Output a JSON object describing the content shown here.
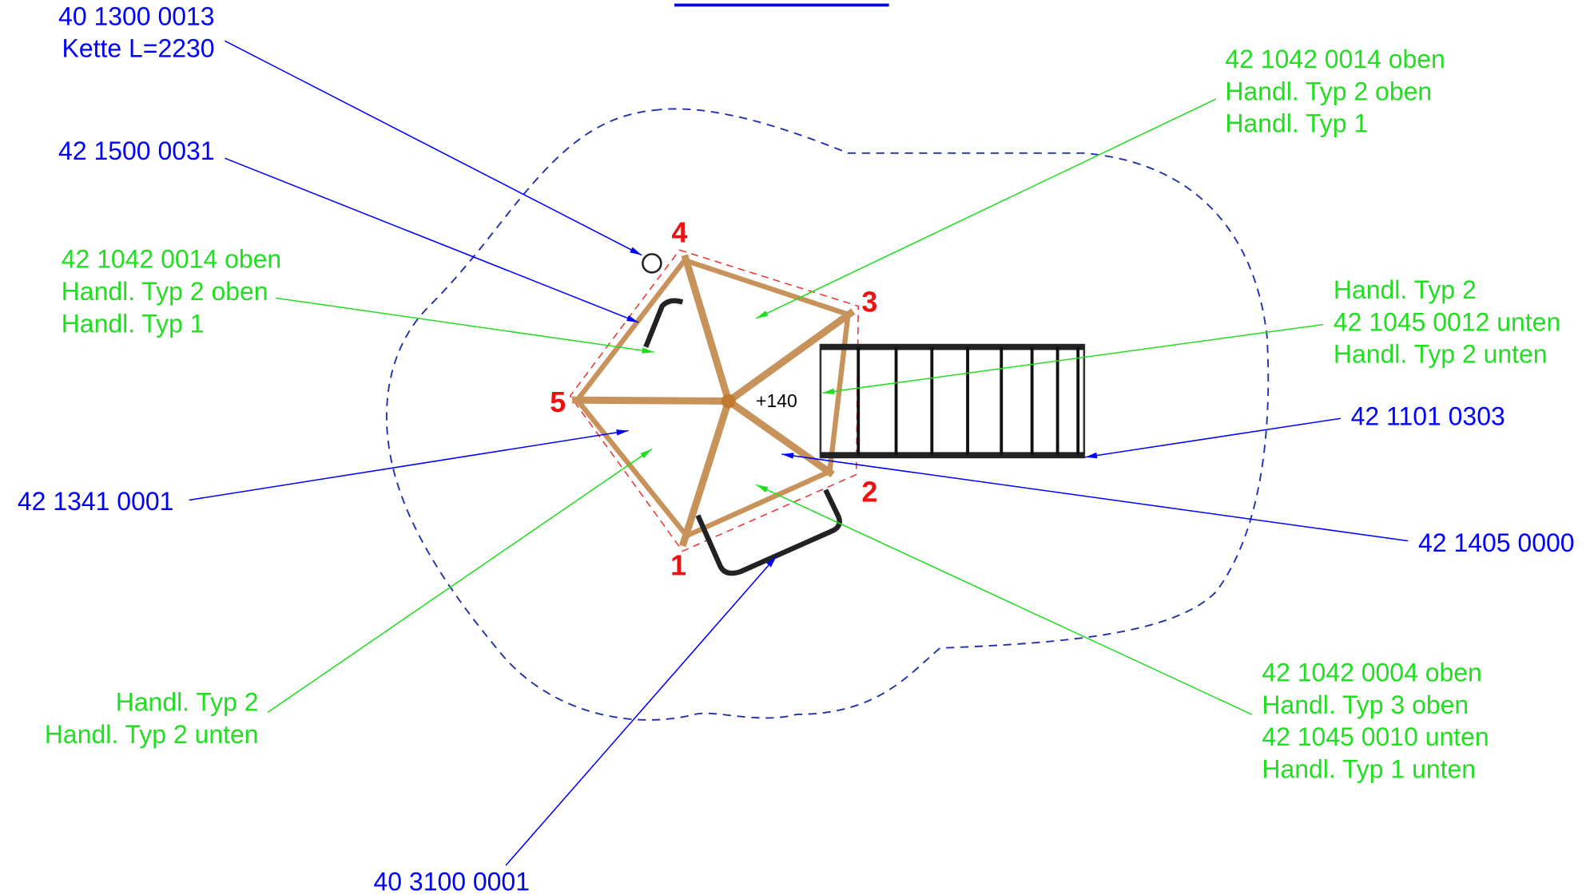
{
  "labels": [
    {
      "lines": [
        "40 1300 0013",
        "Kette L=2230"
      ],
      "color": "#0000ff"
    },
    {
      "lines": [
        "42 1500 0031"
      ],
      "color": "#0000ff"
    },
    {
      "lines": [
        "42 1042 0014 oben",
        "Handl. Typ 2 oben",
        "Handl. Typ 1"
      ],
      "color": "#22dd22"
    },
    {
      "lines": [
        "42 1341 0001"
      ],
      "color": "#0000ff"
    },
    {
      "lines": [
        "Handl. Typ 2",
        "Handl. Typ 2 unten"
      ],
      "color": "#22dd22"
    },
    {
      "lines": [
        "40 3100 0001"
      ],
      "color": "#0000ff"
    },
    {
      "lines": [
        "42 1042 0014 oben",
        "Handl. Typ 2 oben",
        "Handl. Typ 1"
      ],
      "color": "#22dd22"
    },
    {
      "lines": [
        "Handl. Typ 2",
        "42 1045 0012 unten",
        "Handl. Typ 2 unten"
      ],
      "color": "#22dd22"
    },
    {
      "lines": [
        "42 1101 0303"
      ],
      "color": "#0000ff"
    },
    {
      "lines": [
        "42 1405 0000"
      ],
      "color": "#0000ff"
    },
    {
      "lines": [
        "42 1042 0004 oben",
        "Handl. Typ 3 oben",
        "42 1045 0010 unten",
        "Handl. Typ 1 unten"
      ],
      "color": "#22dd22"
    }
  ],
  "vertices": [
    "1",
    "2",
    "3",
    "4",
    "5"
  ],
  "height_mark": "+140"
}
